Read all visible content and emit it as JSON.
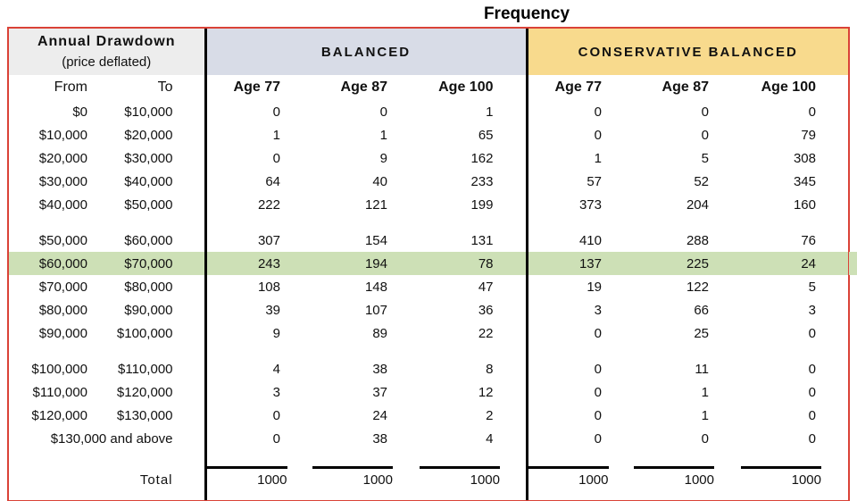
{
  "title": "Frequency",
  "colors": {
    "border_red": "#da4237",
    "label_header_bg": "#ededed",
    "balanced_bg": "#d8dce7",
    "conservative_bg": "#f8da8d",
    "highlight_green": "#cde0b6",
    "line_black": "#000000"
  },
  "chart_data": {
    "type": "table",
    "title": "Frequency",
    "header": {
      "row_label_line1": "Annual Drawdown",
      "row_label_line2": "(price deflated)",
      "from_label": "From",
      "to_label": "To",
      "groups": [
        {
          "label": "BALANCED",
          "columns": [
            "Age 77",
            "Age 87",
            "Age 100"
          ]
        },
        {
          "label": "CONSERVATIVE BALANCED",
          "columns": [
            "Age 77",
            "Age 87",
            "Age 100"
          ]
        }
      ]
    },
    "highlighted_row_index": 6,
    "rows": [
      {
        "from": "$0",
        "to": "$10,000",
        "values": [
          0,
          0,
          1,
          0,
          0,
          0
        ]
      },
      {
        "from": "$10,000",
        "to": "$20,000",
        "values": [
          1,
          1,
          65,
          0,
          0,
          79
        ]
      },
      {
        "from": "$20,000",
        "to": "$30,000",
        "values": [
          0,
          9,
          162,
          1,
          5,
          308
        ]
      },
      {
        "from": "$30,000",
        "to": "$40,000",
        "values": [
          64,
          40,
          233,
          57,
          52,
          345
        ]
      },
      {
        "from": "$40,000",
        "to": "$50,000",
        "values": [
          222,
          121,
          199,
          373,
          204,
          160
        ]
      },
      {
        "from": "$50,000",
        "to": "$60,000",
        "gap_before": true,
        "values": [
          307,
          154,
          131,
          410,
          288,
          76
        ]
      },
      {
        "from": "$60,000",
        "to": "$70,000",
        "values": [
          243,
          194,
          78,
          137,
          225,
          24
        ]
      },
      {
        "from": "$70,000",
        "to": "$80,000",
        "values": [
          108,
          148,
          47,
          19,
          122,
          5
        ]
      },
      {
        "from": "$80,000",
        "to": "$90,000",
        "values": [
          39,
          107,
          36,
          3,
          66,
          3
        ]
      },
      {
        "from": "$90,000",
        "to": "$100,000",
        "values": [
          9,
          89,
          22,
          0,
          25,
          0
        ]
      },
      {
        "from": "$100,000",
        "to": "$110,000",
        "gap_before": true,
        "values": [
          4,
          38,
          8,
          0,
          11,
          0
        ]
      },
      {
        "from": "$110,000",
        "to": "$120,000",
        "values": [
          3,
          37,
          12,
          0,
          1,
          0
        ]
      },
      {
        "from": "$120,000",
        "to": "$130,000",
        "values": [
          0,
          24,
          2,
          0,
          1,
          0
        ]
      },
      {
        "from": "$130,000 and above",
        "to": null,
        "values": [
          0,
          38,
          4,
          0,
          0,
          0
        ]
      }
    ],
    "total": {
      "label": "Total",
      "values": [
        1000,
        1000,
        1000,
        1000,
        1000,
        1000
      ]
    }
  }
}
